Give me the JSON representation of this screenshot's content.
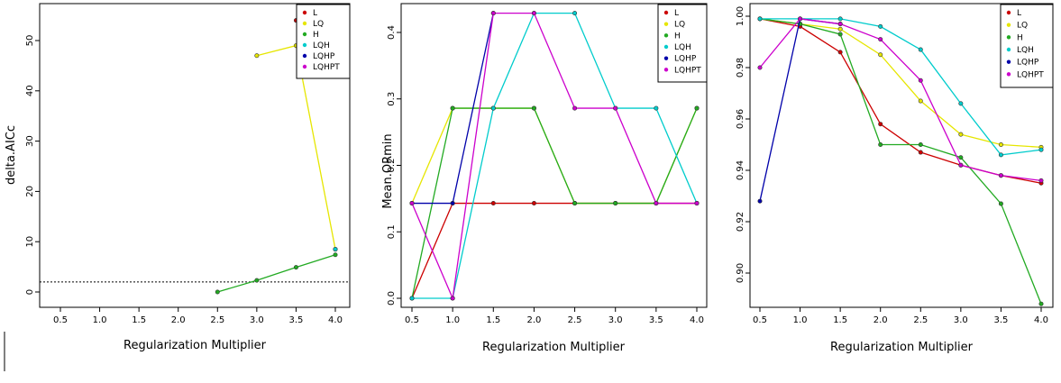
{
  "chart_data": [
    {
      "type": "line",
      "xlabel": "Regularization Multiplier",
      "ylabel": "delta.AICc",
      "xlim": [
        0.5,
        4.0
      ],
      "ylim": [
        -2,
        56
      ],
      "xticks": [
        "0.5",
        "1.0",
        "1.5",
        "2.0",
        "2.5",
        "3.0",
        "3.5",
        "4.0"
      ],
      "yticks": [
        "0",
        "10",
        "20",
        "30",
        "40",
        "50"
      ],
      "reference_line": 2,
      "legend": "top-right",
      "series": [
        {
          "name": "L",
          "color": "#cc0000",
          "x": [
            3.5
          ],
          "y": [
            54
          ]
        },
        {
          "name": "LQ",
          "color": "#e6e600",
          "x": [
            3.0,
            3.5,
            4.0
          ],
          "y": [
            47,
            49,
            8.5
          ]
        },
        {
          "name": "H",
          "color": "#22aa22",
          "x": [
            2.5,
            3.0,
            3.5,
            4.0
          ],
          "y": [
            0,
            2.3,
            4.9,
            7.4
          ]
        },
        {
          "name": "LQH",
          "color": "#00cccc",
          "x": [
            4.0
          ],
          "y": [
            8.5
          ]
        },
        {
          "name": "LQHP",
          "color": "#0000aa",
          "x": [],
          "y": []
        },
        {
          "name": "LQHPT",
          "color": "#cc00cc",
          "x": [],
          "y": []
        }
      ]
    },
    {
      "type": "line",
      "xlabel": "Regularization Multiplier",
      "ylabel": "Mean.ORmin",
      "xlim": [
        0.5,
        4.0
      ],
      "ylim": [
        -0.02,
        0.44
      ],
      "xticks": [
        "0.5",
        "1.0",
        "1.5",
        "2.0",
        "2.5",
        "3.0",
        "3.5",
        "4.0"
      ],
      "yticks": [
        "0.0",
        "0.1",
        "0.2",
        "0.3",
        "0.4"
      ],
      "legend": "top-right",
      "series": [
        {
          "name": "L",
          "color": "#cc0000",
          "x": [
            0.5,
            1.0,
            1.5,
            2.0,
            2.5,
            3.0,
            3.5,
            4.0
          ],
          "y": [
            0.0,
            0.143,
            0.143,
            0.143,
            0.143,
            0.143,
            0.143,
            0.143
          ]
        },
        {
          "name": "LQ",
          "color": "#e6e600",
          "x": [
            0.5,
            1.0,
            1.5,
            2.0,
            2.5,
            3.0,
            3.5,
            4.0
          ],
          "y": [
            0.143,
            0.286,
            0.286,
            0.286,
            0.143,
            0.143,
            0.143,
            0.286
          ]
        },
        {
          "name": "H",
          "color": "#22aa22",
          "x": [
            0.5,
            1.0,
            1.5,
            2.0,
            2.5,
            3.0,
            3.5,
            4.0
          ],
          "y": [
            0.0,
            0.286,
            0.286,
            0.286,
            0.143,
            0.143,
            0.143,
            0.286
          ]
        },
        {
          "name": "LQH",
          "color": "#00cccc",
          "x": [
            0.5,
            1.0,
            1.5,
            2.0,
            2.5,
            3.0,
            3.5,
            4.0
          ],
          "y": [
            0.0,
            0.0,
            0.286,
            0.429,
            0.429,
            0.286,
            0.286,
            0.143
          ]
        },
        {
          "name": "LQHP",
          "color": "#0000aa",
          "x": [
            0.5,
            1.0,
            1.5
          ],
          "y": [
            0.143,
            0.143,
            0.429
          ]
        },
        {
          "name": "LQHPT",
          "color": "#cc00cc",
          "x": [
            0.5,
            1.0,
            1.5,
            2.0,
            2.5,
            3.0,
            3.5,
            4.0
          ],
          "y": [
            0.143,
            0.0,
            0.429,
            0.429,
            0.286,
            0.286,
            0.143,
            0.143
          ]
        }
      ]
    },
    {
      "type": "line",
      "xlabel": "Regularization Multiplier",
      "ylabel": "",
      "xlim": [
        0.5,
        4.0
      ],
      "ylim": [
        0.885,
        1.002
      ],
      "xticks": [
        "0.5",
        "1.0",
        "1.5",
        "2.0",
        "2.5",
        "3.0",
        "3.5",
        "4.0"
      ],
      "yticks": [
        "0.90",
        "0.92",
        "0.94",
        "0.96",
        "0.98",
        "1.00"
      ],
      "legend": "top-right",
      "series": [
        {
          "name": "L",
          "color": "#cc0000",
          "x": [
            0.5,
            1.0,
            1.5,
            2.0,
            2.5,
            3.0,
            3.5,
            4.0
          ],
          "y": [
            0.999,
            0.996,
            0.986,
            0.958,
            0.947,
            0.942,
            0.938,
            0.935
          ]
        },
        {
          "name": "LQ",
          "color": "#e6e600",
          "x": [
            0.5,
            1.0,
            1.5,
            2.0,
            2.5,
            3.0,
            3.5,
            4.0
          ],
          "y": [
            0.999,
            0.997,
            0.995,
            0.985,
            0.967,
            0.954,
            0.95,
            0.949
          ]
        },
        {
          "name": "H",
          "color": "#22aa22",
          "x": [
            0.5,
            1.0,
            1.5,
            2.0,
            2.5,
            3.0,
            3.5,
            4.0
          ],
          "y": [
            0.999,
            0.997,
            0.993,
            0.95,
            0.95,
            0.945,
            0.927,
            0.888
          ]
        },
        {
          "name": "LQH",
          "color": "#00cccc",
          "x": [
            0.5,
            1.0,
            1.5,
            2.0,
            2.5,
            3.0,
            3.5,
            4.0
          ],
          "y": [
            0.999,
            0.999,
            0.999,
            0.996,
            0.987,
            0.966,
            0.946,
            0.948
          ]
        },
        {
          "name": "LQHP",
          "color": "#0000aa",
          "x": [
            0.5,
            1.0,
            1.5
          ],
          "y": [
            0.928,
            0.999,
            0.997
          ]
        },
        {
          "name": "LQHPT",
          "color": "#cc00cc",
          "x": [
            0.5,
            1.0,
            1.5,
            2.0,
            2.5,
            3.0,
            3.5,
            4.0
          ],
          "y": [
            0.98,
            0.999,
            0.997,
            0.991,
            0.975,
            0.942,
            0.938,
            0.936
          ]
        }
      ]
    }
  ]
}
